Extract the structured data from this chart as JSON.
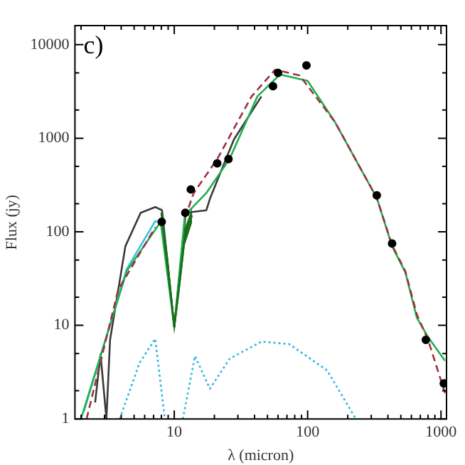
{
  "chart_data": {
    "type": "line",
    "xlabel": "λ (micron)",
    "ylabel": "Flux (jy)",
    "annotations": [
      "c)"
    ],
    "log": "xy",
    "grid": false,
    "legend": false,
    "xlim": [
      1.8,
      1100
    ],
    "ylim": [
      1,
      16000
    ],
    "xticks": [
      {
        "value": 2,
        "label": null
      },
      {
        "value": 3,
        "label": null
      },
      {
        "value": 4,
        "label": null
      },
      {
        "value": 5,
        "label": null
      },
      {
        "value": 6,
        "label": null
      },
      {
        "value": 7,
        "label": null
      },
      {
        "value": 8,
        "label": null
      },
      {
        "value": 9,
        "label": null
      },
      10,
      {
        "value": 20,
        "label": null
      },
      {
        "value": 30,
        "label": null
      },
      {
        "value": 40,
        "label": null
      },
      {
        "value": 50,
        "label": null
      },
      {
        "value": 60,
        "label": null
      },
      {
        "value": 70,
        "label": null
      },
      {
        "value": 80,
        "label": null
      },
      {
        "value": 90,
        "label": null
      },
      100,
      {
        "value": 200,
        "label": null
      },
      {
        "value": 300,
        "label": null
      },
      {
        "value": 400,
        "label": null
      },
      {
        "value": 500,
        "label": null
      },
      {
        "value": 600,
        "label": null
      },
      {
        "value": 700,
        "label": null
      },
      {
        "value": 800,
        "label": null
      },
      {
        "value": 900,
        "label": null
      },
      1000
    ],
    "yticks": [
      1,
      {
        "value": 2,
        "label": null
      },
      {
        "value": 5,
        "label": null
      },
      10,
      {
        "value": 20,
        "label": null
      },
      {
        "value": 50,
        "label": null
      },
      100,
      {
        "value": 200,
        "label": null
      },
      {
        "value": 500,
        "label": null
      },
      1000,
      {
        "value": 2000,
        "label": null
      },
      {
        "value": 5000,
        "label": null
      },
      10000
    ],
    "series": [
      {
        "color": "#3a3a3a",
        "line_style": "solid",
        "marker": "none",
        "x": [
          2.55,
          2.8,
          3.1,
          3.3,
          4.3,
          5.6,
          7.2,
          8.1,
          10,
          12.2,
          17.4,
          18.6,
          23.7,
          28,
          45
        ],
        "values": [
          1.5,
          4.9,
          1,
          7,
          70,
          160,
          184,
          170,
          9.6,
          160,
          170,
          230,
          540,
          970,
          2800
        ]
      },
      {
        "color": "#40c0e0",
        "line_style": "solid",
        "marker": "none",
        "x": [
          2.1,
          4.4,
          7.2,
          7.9
        ],
        "values": [
          1.2,
          40,
          130,
          125
        ]
      },
      {
        "color": "#20b050",
        "line_style": "solid",
        "marker": "none",
        "x": [
          2,
          4.4,
          7.9,
          10,
          12,
          17.4,
          26,
          42,
          62,
          100,
          160,
          330,
          430,
          540,
          660,
          800,
          1070
        ],
        "values": [
          1,
          38,
          128,
          9.6,
          150,
          260,
          600,
          2800,
          4800,
          4100,
          1500,
          230,
          70,
          37,
          12,
          7.5,
          4.2
        ]
      },
      {
        "color": "#a03040",
        "line_style": "dashed",
        "marker": "none",
        "x": [
          2.2,
          3.8,
          7.2,
          10,
          12,
          14,
          21,
          38,
          57,
          87,
          160,
          330,
          430,
          540,
          660,
          800,
          1070
        ],
        "values": [
          1,
          24,
          112,
          null,
          140,
          260,
          600,
          2800,
          5400,
          4700,
          1500,
          230,
          72,
          38,
          13,
          7,
          1.9
        ]
      },
      {
        "color": "#1a6e1a",
        "line_style": "solid",
        "marker": "none",
        "x": [
          8,
          9,
          10,
          11,
          12,
          13.6
        ],
        "values": [
          160,
          40,
          9.6,
          30,
          90,
          150
        ],
        "lower": [
          130,
          30,
          8,
          24,
          72,
          125
        ],
        "upper": [
          190,
          52,
          11.5,
          38,
          110,
          180
        ]
      },
      {
        "color": "#33b5e5",
        "line_style": "dotted",
        "marker": "none",
        "x": [
          3.9,
          5.5,
          7.2,
          8.5,
          9.5,
          11.6,
          14.3,
          18.5,
          26,
          45,
          73,
          140,
          230
        ],
        "values": [
          1,
          4,
          7.2,
          1,
          null,
          1,
          4.7,
          2.1,
          4.4,
          6.7,
          6.3,
          3.3,
          1
        ]
      },
      {
        "type": "scatter",
        "color": "#000000",
        "marker": "circle",
        "x": [
          8.05,
          12.1,
          13.3,
          21,
          25.5,
          55,
          60,
          98,
          330,
          430,
          770,
          1050
        ],
        "values": [
          128,
          160,
          284,
          540,
          600,
          3600,
          5000,
          6000,
          245,
          75,
          7,
          2.4
        ]
      }
    ]
  }
}
